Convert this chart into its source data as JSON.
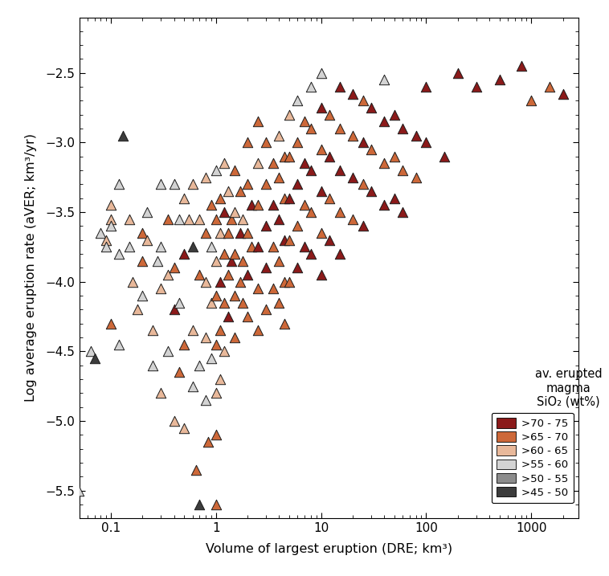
{
  "xlabel": "Volume of largest eruption (DRE; km³)",
  "ylabel": "Log average eruption rate (aVER; km³/yr)",
  "ylim": [
    -5.7,
    -2.1
  ],
  "sio2_colors": {
    ">70 - 75": "#8B1A1A",
    ">65 - 70": "#CD6839",
    ">60 - 65": "#E8B89A",
    ">55 - 60": "#D3D3D3",
    ">50 - 55": "#8C8C8C",
    ">45 - 50": "#3C3C3C"
  },
  "legend_labels": [
    ">70 - 75",
    ">65 - 70",
    ">60 - 65",
    ">55 - 60",
    ">50 - 55",
    ">45 - 50"
  ],
  "legend_title": "av. erupted\nmagma\nSiO₂ (wt%)",
  "marker_size": 80,
  "edge_color": "#1a1a1a",
  "edge_width": 0.7,
  "points": [
    [
      0.05,
      -5.5,
      ">55 - 60"
    ],
    [
      0.065,
      -4.5,
      ">55 - 60"
    ],
    [
      0.07,
      -4.55,
      ">45 - 50"
    ],
    [
      0.08,
      -3.65,
      ">55 - 60"
    ],
    [
      0.09,
      -3.7,
      ">60 - 65"
    ],
    [
      0.09,
      -3.75,
      ">55 - 60"
    ],
    [
      0.1,
      -3.55,
      ">60 - 65"
    ],
    [
      0.1,
      -3.6,
      ">55 - 60"
    ],
    [
      0.1,
      -3.45,
      ">60 - 65"
    ],
    [
      0.1,
      -4.3,
      ">65 - 70"
    ],
    [
      0.12,
      -3.3,
      ">55 - 60"
    ],
    [
      0.12,
      -3.8,
      ">55 - 60"
    ],
    [
      0.12,
      -4.45,
      ">55 - 60"
    ],
    [
      0.13,
      -2.95,
      ">45 - 50"
    ],
    [
      0.15,
      -3.55,
      ">60 - 65"
    ],
    [
      0.15,
      -3.75,
      ">55 - 60"
    ],
    [
      0.16,
      -4.0,
      ">60 - 65"
    ],
    [
      0.18,
      -4.2,
      ">60 - 65"
    ],
    [
      0.2,
      -3.65,
      ">65 - 70"
    ],
    [
      0.2,
      -3.85,
      ">65 - 70"
    ],
    [
      0.2,
      -4.1,
      ">55 - 60"
    ],
    [
      0.22,
      -3.5,
      ">55 - 60"
    ],
    [
      0.22,
      -3.7,
      ">60 - 65"
    ],
    [
      0.25,
      -4.35,
      ">60 - 65"
    ],
    [
      0.25,
      -4.6,
      ">55 - 60"
    ],
    [
      0.28,
      -3.85,
      ">55 - 60"
    ],
    [
      0.3,
      -3.3,
      ">55 - 60"
    ],
    [
      0.3,
      -3.75,
      ">55 - 60"
    ],
    [
      0.3,
      -4.05,
      ">60 - 65"
    ],
    [
      0.3,
      -4.8,
      ">60 - 65"
    ],
    [
      0.35,
      -3.55,
      ">65 - 70"
    ],
    [
      0.35,
      -3.95,
      ">60 - 65"
    ],
    [
      0.35,
      -4.5,
      ">55 - 60"
    ],
    [
      0.4,
      -3.3,
      ">55 - 60"
    ],
    [
      0.4,
      -3.9,
      ">65 - 70"
    ],
    [
      0.4,
      -4.2,
      ">70 - 75"
    ],
    [
      0.4,
      -5.0,
      ">60 - 65"
    ],
    [
      0.45,
      -3.55,
      ">55 - 60"
    ],
    [
      0.45,
      -4.15,
      ">55 - 60"
    ],
    [
      0.45,
      -4.65,
      ">65 - 70"
    ],
    [
      0.5,
      -3.4,
      ">60 - 65"
    ],
    [
      0.5,
      -3.8,
      ">70 - 75"
    ],
    [
      0.5,
      -4.45,
      ">65 - 70"
    ],
    [
      0.5,
      -5.05,
      ">60 - 65"
    ],
    [
      0.55,
      -3.55,
      ">60 - 65"
    ],
    [
      0.6,
      -3.3,
      ">60 - 65"
    ],
    [
      0.6,
      -3.75,
      ">45 - 50"
    ],
    [
      0.6,
      -4.35,
      ">60 - 65"
    ],
    [
      0.6,
      -4.75,
      ">55 - 60"
    ],
    [
      0.65,
      -5.35,
      ">65 - 70"
    ],
    [
      0.7,
      -3.55,
      ">60 - 65"
    ],
    [
      0.7,
      -3.95,
      ">65 - 70"
    ],
    [
      0.7,
      -4.6,
      ">55 - 60"
    ],
    [
      0.7,
      -5.6,
      ">45 - 50"
    ],
    [
      0.8,
      -3.25,
      ">60 - 65"
    ],
    [
      0.8,
      -3.65,
      ">65 - 70"
    ],
    [
      0.8,
      -4.0,
      ">60 - 65"
    ],
    [
      0.8,
      -4.4,
      ">60 - 65"
    ],
    [
      0.8,
      -4.85,
      ">55 - 60"
    ],
    [
      0.85,
      -5.15,
      ">65 - 70"
    ],
    [
      0.9,
      -3.45,
      ">65 - 70"
    ],
    [
      0.9,
      -3.75,
      ">55 - 60"
    ],
    [
      0.9,
      -4.15,
      ">60 - 65"
    ],
    [
      0.9,
      -4.55,
      ">55 - 60"
    ],
    [
      1.0,
      -3.2,
      ">55 - 60"
    ],
    [
      1.0,
      -3.55,
      ">65 - 70"
    ],
    [
      1.0,
      -3.85,
      ">60 - 65"
    ],
    [
      1.0,
      -4.1,
      ">65 - 70"
    ],
    [
      1.0,
      -4.45,
      ">65 - 70"
    ],
    [
      1.0,
      -4.8,
      ">60 - 65"
    ],
    [
      1.0,
      -5.1,
      ">65 - 70"
    ],
    [
      1.0,
      -5.6,
      ">65 - 70"
    ],
    [
      1.1,
      -3.4,
      ">65 - 70"
    ],
    [
      1.1,
      -3.65,
      ">60 - 65"
    ],
    [
      1.1,
      -4.0,
      ">70 - 75"
    ],
    [
      1.1,
      -4.35,
      ">65 - 70"
    ],
    [
      1.1,
      -4.7,
      ">60 - 65"
    ],
    [
      1.2,
      -3.15,
      ">60 - 65"
    ],
    [
      1.2,
      -3.5,
      ">70 - 75"
    ],
    [
      1.2,
      -3.8,
      ">65 - 70"
    ],
    [
      1.2,
      -4.15,
      ">65 - 70"
    ],
    [
      1.2,
      -4.5,
      ">60 - 65"
    ],
    [
      1.3,
      -3.35,
      ">60 - 65"
    ],
    [
      1.3,
      -3.65,
      ">65 - 70"
    ],
    [
      1.3,
      -3.95,
      ">65 - 70"
    ],
    [
      1.3,
      -4.25,
      ">70 - 75"
    ],
    [
      1.4,
      -3.55,
      ">65 - 70"
    ],
    [
      1.4,
      -3.85,
      ">70 - 75"
    ],
    [
      1.5,
      -3.2,
      ">65 - 70"
    ],
    [
      1.5,
      -3.5,
      ">60 - 65"
    ],
    [
      1.5,
      -3.8,
      ">65 - 70"
    ],
    [
      1.5,
      -4.1,
      ">65 - 70"
    ],
    [
      1.5,
      -4.4,
      ">65 - 70"
    ],
    [
      1.7,
      -3.35,
      ">65 - 70"
    ],
    [
      1.7,
      -3.65,
      ">70 - 75"
    ],
    [
      1.7,
      -4.0,
      ">65 - 70"
    ],
    [
      1.8,
      -3.55,
      ">60 - 65"
    ],
    [
      1.8,
      -3.85,
      ">65 - 70"
    ],
    [
      1.8,
      -4.15,
      ">65 - 70"
    ],
    [
      2.0,
      -3.0,
      ">65 - 70"
    ],
    [
      2.0,
      -3.3,
      ">65 - 70"
    ],
    [
      2.0,
      -3.65,
      ">65 - 70"
    ],
    [
      2.0,
      -3.95,
      ">70 - 75"
    ],
    [
      2.0,
      -4.25,
      ">65 - 70"
    ],
    [
      2.2,
      -3.45,
      ">70 - 75"
    ],
    [
      2.2,
      -3.75,
      ">65 - 70"
    ],
    [
      2.5,
      -2.85,
      ">65 - 70"
    ],
    [
      2.5,
      -3.15,
      ">60 - 65"
    ],
    [
      2.5,
      -3.45,
      ">65 - 70"
    ],
    [
      2.5,
      -3.75,
      ">70 - 75"
    ],
    [
      2.5,
      -4.05,
      ">65 - 70"
    ],
    [
      2.5,
      -4.35,
      ">65 - 70"
    ],
    [
      3.0,
      -3.0,
      ">65 - 70"
    ],
    [
      3.0,
      -3.3,
      ">65 - 70"
    ],
    [
      3.0,
      -3.6,
      ">70 - 75"
    ],
    [
      3.0,
      -3.9,
      ">70 - 75"
    ],
    [
      3.0,
      -4.2,
      ">65 - 70"
    ],
    [
      3.5,
      -3.15,
      ">65 - 70"
    ],
    [
      3.5,
      -3.45,
      ">70 - 75"
    ],
    [
      3.5,
      -3.75,
      ">65 - 70"
    ],
    [
      3.5,
      -4.05,
      ">65 - 70"
    ],
    [
      4.0,
      -2.95,
      ">60 - 65"
    ],
    [
      4.0,
      -3.25,
      ">65 - 70"
    ],
    [
      4.0,
      -3.55,
      ">70 - 75"
    ],
    [
      4.0,
      -3.85,
      ">65 - 70"
    ],
    [
      4.0,
      -4.15,
      ">65 - 70"
    ],
    [
      4.5,
      -3.1,
      ">65 - 70"
    ],
    [
      4.5,
      -3.4,
      ">65 - 70"
    ],
    [
      4.5,
      -3.7,
      ">70 - 75"
    ],
    [
      4.5,
      -4.0,
      ">65 - 70"
    ],
    [
      4.5,
      -4.3,
      ">65 - 70"
    ],
    [
      5.0,
      -2.8,
      ">60 - 65"
    ],
    [
      5.0,
      -3.1,
      ">65 - 70"
    ],
    [
      5.0,
      -3.4,
      ">70 - 75"
    ],
    [
      5.0,
      -3.7,
      ">65 - 70"
    ],
    [
      5.0,
      -4.0,
      ">65 - 70"
    ],
    [
      6.0,
      -2.7,
      ">55 - 60"
    ],
    [
      6.0,
      -3.0,
      ">65 - 70"
    ],
    [
      6.0,
      -3.3,
      ">70 - 75"
    ],
    [
      6.0,
      -3.6,
      ">65 - 70"
    ],
    [
      6.0,
      -3.9,
      ">70 - 75"
    ],
    [
      7.0,
      -2.85,
      ">65 - 70"
    ],
    [
      7.0,
      -3.15,
      ">70 - 75"
    ],
    [
      7.0,
      -3.45,
      ">65 - 70"
    ],
    [
      7.0,
      -3.75,
      ">70 - 75"
    ],
    [
      8.0,
      -2.6,
      ">55 - 60"
    ],
    [
      8.0,
      -2.9,
      ">65 - 70"
    ],
    [
      8.0,
      -3.2,
      ">70 - 75"
    ],
    [
      8.0,
      -3.5,
      ">65 - 70"
    ],
    [
      8.0,
      -3.8,
      ">70 - 75"
    ],
    [
      10.0,
      -2.5,
      ">55 - 60"
    ],
    [
      10.0,
      -2.75,
      ">70 - 75"
    ],
    [
      10.0,
      -3.05,
      ">65 - 70"
    ],
    [
      10.0,
      -3.35,
      ">70 - 75"
    ],
    [
      10.0,
      -3.65,
      ">65 - 70"
    ],
    [
      10.0,
      -3.95,
      ">70 - 75"
    ],
    [
      12.0,
      -2.8,
      ">65 - 70"
    ],
    [
      12.0,
      -3.1,
      ">70 - 75"
    ],
    [
      12.0,
      -3.4,
      ">65 - 70"
    ],
    [
      12.0,
      -3.7,
      ">70 - 75"
    ],
    [
      15.0,
      -2.6,
      ">70 - 75"
    ],
    [
      15.0,
      -2.9,
      ">65 - 70"
    ],
    [
      15.0,
      -3.2,
      ">70 - 75"
    ],
    [
      15.0,
      -3.5,
      ">65 - 70"
    ],
    [
      15.0,
      -3.8,
      ">70 - 75"
    ],
    [
      20.0,
      -2.65,
      ">70 - 75"
    ],
    [
      20.0,
      -2.95,
      ">65 - 70"
    ],
    [
      20.0,
      -3.25,
      ">70 - 75"
    ],
    [
      20.0,
      -3.55,
      ">65 - 70"
    ],
    [
      25.0,
      -2.7,
      ">65 - 70"
    ],
    [
      25.0,
      -3.0,
      ">70 - 75"
    ],
    [
      25.0,
      -3.3,
      ">65 - 70"
    ],
    [
      25.0,
      -3.6,
      ">70 - 75"
    ],
    [
      30.0,
      -2.75,
      ">70 - 75"
    ],
    [
      30.0,
      -3.05,
      ">65 - 70"
    ],
    [
      30.0,
      -3.35,
      ">70 - 75"
    ],
    [
      40.0,
      -2.55,
      ">55 - 60"
    ],
    [
      40.0,
      -2.85,
      ">70 - 75"
    ],
    [
      40.0,
      -3.15,
      ">65 - 70"
    ],
    [
      40.0,
      -3.45,
      ">70 - 75"
    ],
    [
      50.0,
      -2.8,
      ">70 - 75"
    ],
    [
      50.0,
      -3.1,
      ">65 - 70"
    ],
    [
      50.0,
      -3.4,
      ">70 - 75"
    ],
    [
      60.0,
      -2.9,
      ">70 - 75"
    ],
    [
      60.0,
      -3.2,
      ">65 - 70"
    ],
    [
      60.0,
      -3.5,
      ">70 - 75"
    ],
    [
      80.0,
      -2.95,
      ">70 - 75"
    ],
    [
      80.0,
      -3.25,
      ">65 - 70"
    ],
    [
      100.0,
      -2.6,
      ">70 - 75"
    ],
    [
      100.0,
      -3.0,
      ">70 - 75"
    ],
    [
      150.0,
      -3.1,
      ">70 - 75"
    ],
    [
      200.0,
      -2.5,
      ">70 - 75"
    ],
    [
      300.0,
      -2.6,
      ">70 - 75"
    ],
    [
      500.0,
      -2.55,
      ">70 - 75"
    ],
    [
      800.0,
      -2.45,
      ">70 - 75"
    ],
    [
      1000.0,
      -2.7,
      ">65 - 70"
    ],
    [
      1500.0,
      -2.6,
      ">65 - 70"
    ],
    [
      2000.0,
      -2.65,
      ">70 - 75"
    ]
  ]
}
